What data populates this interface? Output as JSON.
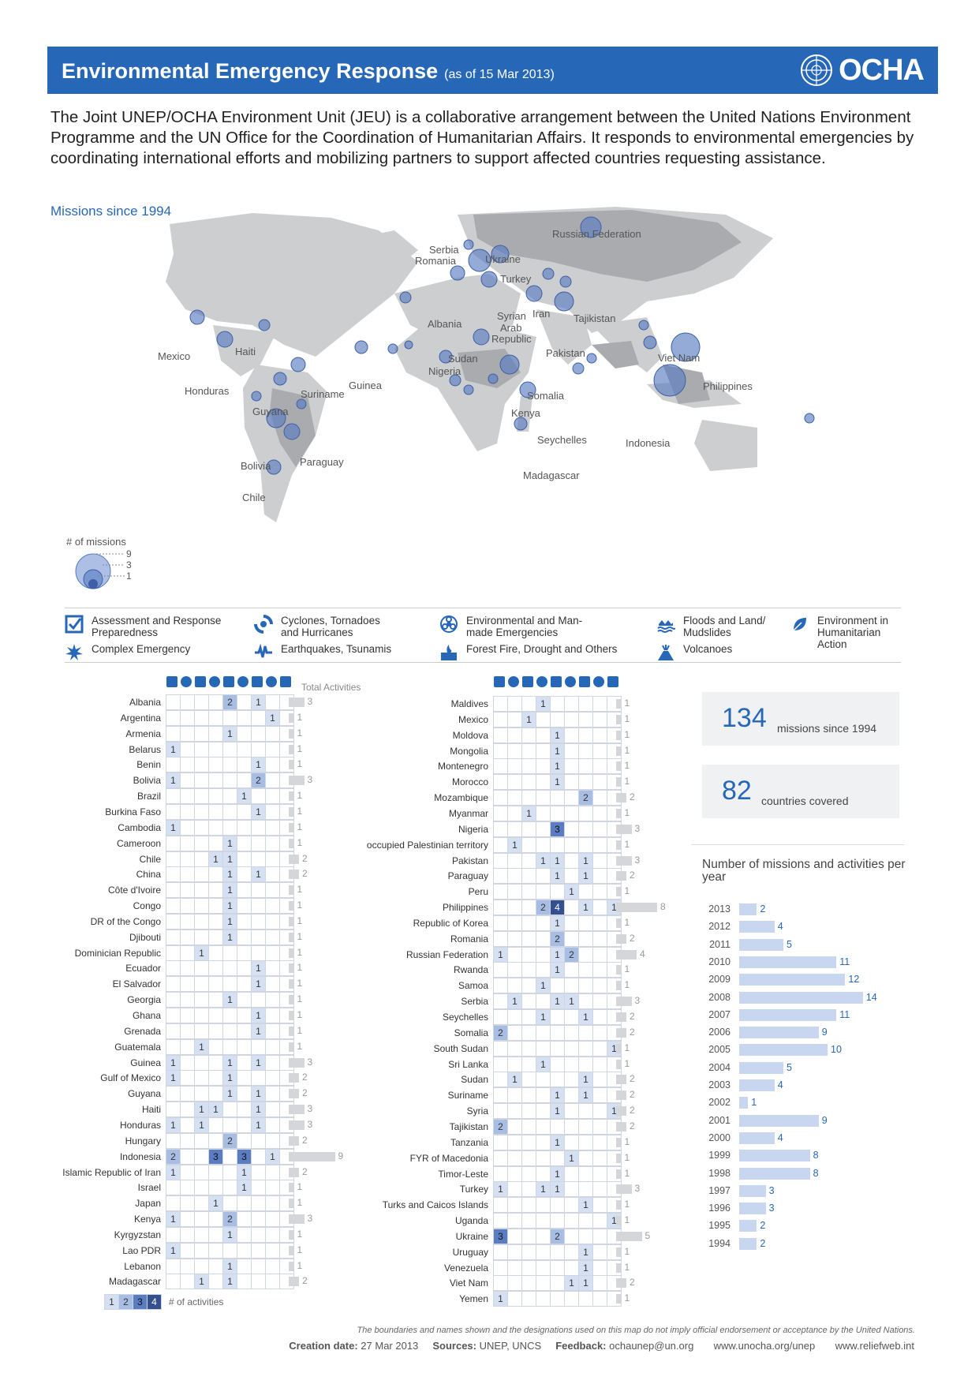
{
  "header": {
    "title": "Environmental Emergency Response",
    "date": "(as of 15 Mar 2013)",
    "logo_text": "OCHA"
  },
  "intro": "The Joint UNEP/OCHA Environment Unit (JEU) is a collaborative arrangement between the United Nations Environment Programme and the UN Office for the Coordination of Humanitarian Affairs. It responds to environmental emergencies by coordinating international efforts and mobilizing partners to support affected countries requesting assistance.",
  "map": {
    "title": "Missions since 1994",
    "labels": [
      "Russian Federation",
      "Serbia",
      "Romania",
      "Ukraine",
      "Turkey",
      "Albania",
      "Iran",
      "Tajikistan",
      "Syrian",
      "Arab",
      "Republic",
      "Pakistan",
      "Mexico",
      "Haiti",
      "Honduras",
      "Guinea",
      "Sudan",
      "Nigeria",
      "Viet Nam",
      "Philippines",
      "Suriname",
      "Guyana",
      "Somalia",
      "Kenya",
      "Seychelles",
      "Indonesia",
      "Bolivia",
      "Paraguay",
      "Chile",
      "Madagascar"
    ],
    "legend_title": "# of missions",
    "legend_values": [
      "9",
      "3",
      "1"
    ]
  },
  "categories": [
    {
      "icon": "checkbox-icon",
      "label": "Assessment and Response Preparedness"
    },
    {
      "icon": "cyclone-icon",
      "label": "Cyclones, Tornadoes and Hurricanes"
    },
    {
      "icon": "biohazard-icon",
      "label": "Environmental and Man-made Emergencies"
    },
    {
      "icon": "flood-icon",
      "label": "Floods and Land/ Mudslides"
    },
    {
      "icon": "leaf-icon",
      "label": "Environment in Humanitarian Action"
    },
    {
      "icon": "complex-emergency-icon",
      "label": "Complex Emergency"
    },
    {
      "icon": "earthquake-icon",
      "label": "Earthquakes, Tsunamis"
    },
    {
      "icon": "fire-icon",
      "label": "Forest Fire, Drought and Others"
    },
    {
      "icon": "volcano-icon",
      "label": "Volcanoes"
    }
  ],
  "table": {
    "total_header": "Total Activities",
    "left": [
      {
        "name": "Albania",
        "cells": [
          0,
          0,
          0,
          0,
          2,
          0,
          1,
          0,
          0
        ],
        "total": 3
      },
      {
        "name": "Argentina",
        "cells": [
          0,
          0,
          0,
          0,
          0,
          0,
          0,
          1,
          0
        ],
        "total": 1
      },
      {
        "name": "Armenia",
        "cells": [
          0,
          0,
          0,
          0,
          1,
          0,
          0,
          0,
          0
        ],
        "total": 1
      },
      {
        "name": "Belarus",
        "cells": [
          1,
          0,
          0,
          0,
          0,
          0,
          0,
          0,
          0
        ],
        "total": 1
      },
      {
        "name": "Benin",
        "cells": [
          0,
          0,
          0,
          0,
          0,
          0,
          1,
          0,
          0
        ],
        "total": 1
      },
      {
        "name": "Bolivia",
        "cells": [
          1,
          0,
          0,
          0,
          0,
          0,
          2,
          0,
          0
        ],
        "total": 3
      },
      {
        "name": "Brazil",
        "cells": [
          0,
          0,
          0,
          0,
          0,
          1,
          0,
          0,
          0
        ],
        "total": 1
      },
      {
        "name": "Burkina Faso",
        "cells": [
          0,
          0,
          0,
          0,
          0,
          0,
          1,
          0,
          0
        ],
        "total": 1
      },
      {
        "name": "Cambodia",
        "cells": [
          1,
          0,
          0,
          0,
          0,
          0,
          0,
          0,
          0
        ],
        "total": 1
      },
      {
        "name": "Cameroon",
        "cells": [
          0,
          0,
          0,
          0,
          1,
          0,
          0,
          0,
          0
        ],
        "total": 1
      },
      {
        "name": "Chile",
        "cells": [
          0,
          0,
          0,
          1,
          1,
          0,
          0,
          0,
          0
        ],
        "total": 2
      },
      {
        "name": "China",
        "cells": [
          0,
          0,
          0,
          0,
          1,
          0,
          1,
          0,
          0
        ],
        "total": 2
      },
      {
        "name": "Côte d'Ivoire",
        "cells": [
          0,
          0,
          0,
          0,
          1,
          0,
          0,
          0,
          0
        ],
        "total": 1
      },
      {
        "name": "Congo",
        "cells": [
          0,
          0,
          0,
          0,
          1,
          0,
          0,
          0,
          0
        ],
        "total": 1
      },
      {
        "name": "DR of the Congo",
        "cells": [
          0,
          0,
          0,
          0,
          1,
          0,
          0,
          0,
          0
        ],
        "total": 1
      },
      {
        "name": "Djibouti",
        "cells": [
          0,
          0,
          0,
          0,
          1,
          0,
          0,
          0,
          0
        ],
        "total": 1
      },
      {
        "name": "Dominician Republic",
        "cells": [
          0,
          0,
          1,
          0,
          0,
          0,
          0,
          0,
          0
        ],
        "total": 1
      },
      {
        "name": "Ecuador",
        "cells": [
          0,
          0,
          0,
          0,
          0,
          0,
          1,
          0,
          0
        ],
        "total": 1
      },
      {
        "name": "El Salvador",
        "cells": [
          0,
          0,
          0,
          0,
          0,
          0,
          1,
          0,
          0
        ],
        "total": 1
      },
      {
        "name": "Georgia",
        "cells": [
          0,
          0,
          0,
          0,
          1,
          0,
          0,
          0,
          0
        ],
        "total": 1
      },
      {
        "name": "Ghana",
        "cells": [
          0,
          0,
          0,
          0,
          0,
          0,
          1,
          0,
          0
        ],
        "total": 1
      },
      {
        "name": "Grenada",
        "cells": [
          0,
          0,
          0,
          0,
          0,
          0,
          1,
          0,
          0
        ],
        "total": 1
      },
      {
        "name": "Guatemala",
        "cells": [
          0,
          0,
          1,
          0,
          0,
          0,
          0,
          0,
          0
        ],
        "total": 1
      },
      {
        "name": "Guinea",
        "cells": [
          1,
          0,
          0,
          0,
          1,
          0,
          1,
          0,
          0
        ],
        "total": 3
      },
      {
        "name": "Gulf of Mexico",
        "cells": [
          1,
          0,
          0,
          0,
          1,
          0,
          0,
          0,
          0
        ],
        "total": 2
      },
      {
        "name": "Guyana",
        "cells": [
          0,
          0,
          0,
          0,
          1,
          0,
          1,
          0,
          0
        ],
        "total": 2
      },
      {
        "name": "Haiti",
        "cells": [
          0,
          0,
          1,
          1,
          0,
          0,
          1,
          0,
          0
        ],
        "total": 3
      },
      {
        "name": "Honduras",
        "cells": [
          1,
          0,
          1,
          0,
          0,
          0,
          1,
          0,
          0
        ],
        "total": 3
      },
      {
        "name": "Hungary",
        "cells": [
          0,
          0,
          0,
          0,
          2,
          0,
          0,
          0,
          0
        ],
        "total": 2
      },
      {
        "name": "Indonesia",
        "cells": [
          2,
          0,
          0,
          3,
          0,
          3,
          0,
          1,
          0
        ],
        "total": 9
      },
      {
        "name": "Islamic Republic of Iran",
        "cells": [
          1,
          0,
          0,
          0,
          0,
          1,
          0,
          0,
          0
        ],
        "total": 2
      },
      {
        "name": "Israel",
        "cells": [
          0,
          0,
          0,
          0,
          0,
          1,
          0,
          0,
          0
        ],
        "total": 1
      },
      {
        "name": "Japan",
        "cells": [
          0,
          0,
          0,
          1,
          0,
          0,
          0,
          0,
          0
        ],
        "total": 1
      },
      {
        "name": "Kenya",
        "cells": [
          1,
          0,
          0,
          0,
          2,
          0,
          0,
          0,
          0
        ],
        "total": 3
      },
      {
        "name": "Kyrgyzstan",
        "cells": [
          0,
          0,
          0,
          0,
          1,
          0,
          0,
          0,
          0
        ],
        "total": 1
      },
      {
        "name": "Lao PDR",
        "cells": [
          1,
          0,
          0,
          0,
          0,
          0,
          0,
          0,
          0
        ],
        "total": 1
      },
      {
        "name": "Lebanon",
        "cells": [
          0,
          0,
          0,
          0,
          1,
          0,
          0,
          0,
          0
        ],
        "total": 1
      },
      {
        "name": "Madagascar",
        "cells": [
          0,
          0,
          1,
          0,
          1,
          0,
          0,
          0,
          0
        ],
        "total": 2
      }
    ],
    "right": [
      {
        "name": "Maldives",
        "cells": [
          0,
          0,
          0,
          1,
          0,
          0,
          0,
          0,
          0
        ],
        "total": 1
      },
      {
        "name": "Mexico",
        "cells": [
          0,
          0,
          1,
          0,
          0,
          0,
          0,
          0,
          0
        ],
        "total": 1
      },
      {
        "name": "Moldova",
        "cells": [
          0,
          0,
          0,
          0,
          1,
          0,
          0,
          0,
          0
        ],
        "total": 1
      },
      {
        "name": "Mongolia",
        "cells": [
          0,
          0,
          0,
          0,
          1,
          0,
          0,
          0,
          0
        ],
        "total": 1
      },
      {
        "name": "Montenegro",
        "cells": [
          0,
          0,
          0,
          0,
          1,
          0,
          0,
          0,
          0
        ],
        "total": 1
      },
      {
        "name": "Morocco",
        "cells": [
          0,
          0,
          0,
          0,
          1,
          0,
          0,
          0,
          0
        ],
        "total": 1
      },
      {
        "name": "Mozambique",
        "cells": [
          0,
          0,
          0,
          0,
          0,
          0,
          2,
          0,
          0
        ],
        "total": 2
      },
      {
        "name": "Myanmar",
        "cells": [
          0,
          0,
          1,
          0,
          0,
          0,
          0,
          0,
          0
        ],
        "total": 1
      },
      {
        "name": "Nigeria",
        "cells": [
          0,
          0,
          0,
          0,
          3,
          0,
          0,
          0,
          0
        ],
        "total": 3
      },
      {
        "name": "occupied Palestinian territory",
        "cells": [
          0,
          1,
          0,
          0,
          0,
          0,
          0,
          0,
          0
        ],
        "total": 1
      },
      {
        "name": "Pakistan",
        "cells": [
          0,
          0,
          0,
          1,
          1,
          0,
          1,
          0,
          0
        ],
        "total": 3
      },
      {
        "name": "Paraguay",
        "cells": [
          0,
          0,
          0,
          0,
          1,
          0,
          1,
          0,
          0
        ],
        "total": 2
      },
      {
        "name": "Peru",
        "cells": [
          0,
          0,
          0,
          0,
          0,
          1,
          0,
          0,
          0
        ],
        "total": 1
      },
      {
        "name": "Philippines",
        "cells": [
          0,
          0,
          0,
          2,
          4,
          0,
          1,
          0,
          1
        ],
        "total": 8
      },
      {
        "name": "Republic of Korea",
        "cells": [
          0,
          0,
          0,
          0,
          1,
          0,
          0,
          0,
          0
        ],
        "total": 1
      },
      {
        "name": "Romania",
        "cells": [
          0,
          0,
          0,
          0,
          2,
          0,
          0,
          0,
          0
        ],
        "total": 2
      },
      {
        "name": "Russian Federation",
        "cells": [
          1,
          0,
          0,
          0,
          1,
          2,
          0,
          0,
          0
        ],
        "total": 4
      },
      {
        "name": "Rwanda",
        "cells": [
          0,
          0,
          0,
          0,
          1,
          0,
          0,
          0,
          0
        ],
        "total": 1
      },
      {
        "name": "Samoa",
        "cells": [
          0,
          0,
          0,
          1,
          0,
          0,
          0,
          0,
          0
        ],
        "total": 1
      },
      {
        "name": "Serbia",
        "cells": [
          0,
          1,
          0,
          0,
          1,
          1,
          0,
          0,
          0
        ],
        "total": 3
      },
      {
        "name": "Seychelles",
        "cells": [
          0,
          0,
          0,
          1,
          0,
          0,
          1,
          0,
          0
        ],
        "total": 2
      },
      {
        "name": "Somalia",
        "cells": [
          2,
          0,
          0,
          0,
          0,
          0,
          0,
          0,
          0
        ],
        "total": 2
      },
      {
        "name": "South Sudan",
        "cells": [
          0,
          0,
          0,
          0,
          0,
          0,
          0,
          0,
          1
        ],
        "total": 1
      },
      {
        "name": "Sri Lanka",
        "cells": [
          0,
          0,
          0,
          1,
          0,
          0,
          0,
          0,
          0
        ],
        "total": 1
      },
      {
        "name": "Sudan",
        "cells": [
          0,
          1,
          0,
          0,
          0,
          0,
          1,
          0,
          0
        ],
        "total": 2
      },
      {
        "name": "Suriname",
        "cells": [
          0,
          0,
          0,
          0,
          1,
          0,
          1,
          0,
          0
        ],
        "total": 2
      },
      {
        "name": "Syria",
        "cells": [
          0,
          0,
          0,
          0,
          1,
          0,
          0,
          0,
          1
        ],
        "total": 2
      },
      {
        "name": "Tajikistan",
        "cells": [
          2,
          0,
          0,
          0,
          0,
          0,
          0,
          0,
          0
        ],
        "total": 2
      },
      {
        "name": "Tanzania",
        "cells": [
          0,
          0,
          0,
          0,
          1,
          0,
          0,
          0,
          0
        ],
        "total": 1
      },
      {
        "name": "FYR of Macedonia",
        "cells": [
          0,
          0,
          0,
          0,
          0,
          1,
          0,
          0,
          0
        ],
        "total": 1
      },
      {
        "name": "Timor-Leste",
        "cells": [
          0,
          0,
          0,
          0,
          1,
          0,
          0,
          0,
          0
        ],
        "total": 1
      },
      {
        "name": "Turkey",
        "cells": [
          1,
          0,
          0,
          1,
          1,
          0,
          0,
          0,
          0
        ],
        "total": 3
      },
      {
        "name": "Turks and Caicos Islands",
        "cells": [
          0,
          0,
          0,
          0,
          0,
          0,
          1,
          0,
          0
        ],
        "total": 1
      },
      {
        "name": "Uganda",
        "cells": [
          0,
          0,
          0,
          0,
          0,
          0,
          0,
          0,
          1
        ],
        "total": 1
      },
      {
        "name": "Ukraine",
        "cells": [
          3,
          0,
          0,
          0,
          2,
          0,
          0,
          0,
          0
        ],
        "total": 5
      },
      {
        "name": "Uruguay",
        "cells": [
          0,
          0,
          0,
          0,
          0,
          0,
          1,
          0,
          0
        ],
        "total": 1
      },
      {
        "name": "Venezuela",
        "cells": [
          0,
          0,
          0,
          0,
          0,
          0,
          1,
          0,
          0
        ],
        "total": 1
      },
      {
        "name": "Viet Nam",
        "cells": [
          0,
          0,
          0,
          0,
          0,
          1,
          1,
          0,
          0
        ],
        "total": 2
      },
      {
        "name": "Yemen",
        "cells": [
          1,
          0,
          0,
          0,
          0,
          0,
          0,
          0,
          0
        ],
        "total": 1
      }
    ],
    "scale_values": [
      "1",
      "2",
      "3",
      "4"
    ],
    "scale_label": "# of activities"
  },
  "stats": {
    "missions_value": "134",
    "missions_label": "missions since 1994",
    "countries_value": "82",
    "countries_label": "countries covered"
  },
  "chart_data": {
    "type": "bar",
    "title": "Number of missions and activities per year",
    "categories": [
      "2013",
      "2012",
      "2011",
      "2010",
      "2009",
      "2008",
      "2007",
      "2006",
      "2005",
      "2004",
      "2003",
      "2002",
      "2001",
      "2000",
      "1999",
      "1998",
      "1997",
      "1996",
      "1995",
      "1994"
    ],
    "values": [
      2,
      4,
      5,
      11,
      12,
      14,
      11,
      9,
      10,
      5,
      4,
      1,
      9,
      4,
      8,
      8,
      3,
      3,
      2,
      2
    ]
  },
  "footer": {
    "disclaimer": "The boundaries and names shown and the designations used on this map do not imply official endorsement or acceptance by the United Nations.",
    "creation_label": "Creation date:",
    "creation_value": "27 Mar 2013",
    "sources_label": "Sources:",
    "sources_value": "UNEP, UNCS",
    "feedback_label": "Feedback:",
    "feedback_value": "ochaunep@un.org",
    "url1": "www.unocha.org/unep",
    "url2": "www.reliefweb.int"
  },
  "colors": {
    "brand": "#2767b8",
    "land": "#c8c9cc",
    "bubble": "#5a7dc2"
  }
}
